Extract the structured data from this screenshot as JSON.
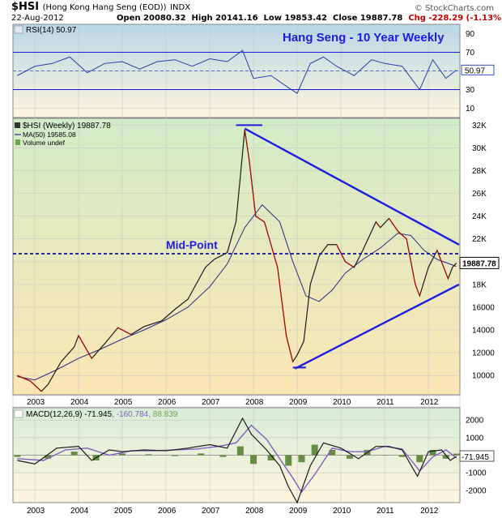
{
  "header": {
    "symbol": "$HSI",
    "name": "(Hong Kong Hang Seng (EOD))",
    "exchange": "INDX",
    "date": "22-Aug-2012",
    "open": "Open 20080.32",
    "high": "High 20141.16",
    "low": "Low 19853.42",
    "close": "Close 19887.78",
    "chg": "Chg -228.29 (-1.13%)",
    "copyright": "© StockCharts.com"
  },
  "colors": {
    "panel_bg": "#fdf5dc",
    "rsi_gradient_top": "#b8d8e8",
    "price_gradient_top": "#d2ecc8",
    "price_gradient_bottom": "#fde6b4",
    "annotation_blue": "#1c1ce0",
    "price_line": "#1a1a1a",
    "up_bar": "#1a1a1a",
    "down_bar": "#c00000",
    "ma_line": "#2a2a80",
    "macd_line": "#1a1a1a",
    "signal_line": "#8060c0",
    "histogram": "#507a2a"
  },
  "chart_data": [
    {
      "type": "line",
      "panel": "RSI",
      "legend": "RSI(14) 50.97",
      "title": "Hang Seng - 10 Year Weekly",
      "current_label": "50.97",
      "ylim": [
        0,
        100
      ],
      "y_ticks": [
        "10",
        "30",
        "50",
        "70",
        "90"
      ],
      "reference_lines": [
        70,
        30
      ],
      "x": [
        2002.6,
        2003.0,
        2003.4,
        2003.8,
        2004.2,
        2004.6,
        2005.0,
        2005.4,
        2005.8,
        2006.2,
        2006.6,
        2007.0,
        2007.4,
        2007.75,
        2008.0,
        2008.4,
        2008.8,
        2009.0,
        2009.3,
        2009.6,
        2009.9,
        2010.3,
        2010.7,
        2011.0,
        2011.4,
        2011.8,
        2012.1,
        2012.4,
        2012.64
      ],
      "values": [
        45,
        55,
        58,
        65,
        48,
        58,
        60,
        52,
        60,
        62,
        55,
        63,
        60,
        72,
        42,
        45,
        32,
        26,
        58,
        65,
        55,
        45,
        62,
        58,
        55,
        30,
        62,
        42,
        51
      ]
    },
    {
      "type": "line",
      "panel": "Price",
      "legend": [
        "$HSI (Weekly) 19887.78",
        "MA(50) 19585.08",
        "Volume undef"
      ],
      "current_label": "19887.78",
      "ylim": [
        8300,
        32600
      ],
      "y_ticks": [
        "10000",
        "12000",
        "14000",
        "16000",
        "18K",
        "20K",
        "22K",
        "24K",
        "26K",
        "28K",
        "30K",
        "32K"
      ],
      "x_ticks": [
        "2003",
        "2004",
        "2005",
        "2006",
        "2007",
        "2008",
        "2009",
        "2010",
        "2011",
        "2012"
      ],
      "series": [
        {
          "name": "$HSI (Weekly)",
          "x": [
            2002.6,
            2002.9,
            2003.15,
            2003.3,
            2003.6,
            2003.9,
            2004.0,
            2004.3,
            2004.6,
            2004.9,
            2005.2,
            2005.5,
            2005.9,
            2006.2,
            2006.5,
            2006.9,
            2007.1,
            2007.4,
            2007.6,
            2007.7,
            2007.8,
            2007.9,
            2008.05,
            2008.25,
            2008.4,
            2008.55,
            2008.75,
            2008.9,
            2009.0,
            2009.15,
            2009.3,
            2009.5,
            2009.7,
            2009.9,
            2010.1,
            2010.3,
            2010.5,
            2010.8,
            2010.9,
            2011.1,
            2011.3,
            2011.5,
            2011.7,
            2011.8,
            2012.0,
            2012.2,
            2012.35,
            2012.45,
            2012.55,
            2012.64
          ],
          "values": [
            10000,
            9500,
            8600,
            9200,
            11200,
            12500,
            13500,
            11500,
            12800,
            14200,
            13600,
            14300,
            14800,
            15800,
            16700,
            19500,
            20200,
            20800,
            23500,
            27500,
            31600,
            29000,
            24000,
            23500,
            21500,
            19500,
            13500,
            11200,
            11800,
            13000,
            18000,
            20500,
            21500,
            21500,
            20000,
            19500,
            21000,
            23500,
            23000,
            23800,
            22700,
            22000,
            18000,
            17000,
            19500,
            21000,
            19500,
            18500,
            19500,
            19888
          ]
        },
        {
          "name": "MA(50)",
          "x": [
            2002.6,
            2003.0,
            2003.5,
            2004.0,
            2004.5,
            2005.0,
            2005.5,
            2006.0,
            2006.5,
            2007.0,
            2007.4,
            2007.8,
            2008.2,
            2008.6,
            2008.9,
            2009.2,
            2009.5,
            2009.8,
            2010.1,
            2010.5,
            2010.9,
            2011.3,
            2011.6,
            2011.9,
            2012.2,
            2012.64
          ],
          "values": [
            9900,
            9600,
            10500,
            11500,
            12300,
            13200,
            14000,
            14900,
            16000,
            17800,
            19800,
            23000,
            25000,
            23500,
            20000,
            17000,
            16500,
            17500,
            19000,
            20200,
            21200,
            22500,
            22300,
            21000,
            20200,
            19585
          ]
        }
      ],
      "annotations": {
        "midpoint_label": "Mid-Point",
        "midpoint_value": 20700,
        "triangle_upper": [
          [
            2007.8,
            31700
          ],
          [
            2012.7,
            21500
          ]
        ],
        "triangle_lower": [
          [
            2008.95,
            10600
          ],
          [
            2012.7,
            18000
          ]
        ],
        "top_cap": [
          [
            2007.6,
            32000
          ],
          [
            2008.2,
            32000
          ]
        ],
        "bottom_cap": [
          [
            2008.9,
            10700
          ],
          [
            2009.2,
            10700
          ]
        ]
      }
    },
    {
      "type": "line",
      "panel": "MACD",
      "legend": "MACD(12,26,9) -71.945, -160.784, 88.839",
      "current_label": "-71.945",
      "ylim": [
        -2700,
        2700
      ],
      "y_ticks": [
        "-2000",
        "-1000",
        "0",
        "1000",
        "2000"
      ],
      "x_ticks": [
        "2003",
        "2004",
        "2005",
        "2006",
        "2007",
        "2008",
        "2009",
        "2010",
        "2011",
        "2012"
      ],
      "series": [
        {
          "name": "MACD",
          "x": [
            2002.6,
            2003.0,
            2003.5,
            2004.0,
            2004.3,
            2004.7,
            2005.0,
            2005.5,
            2006.0,
            2006.5,
            2007.0,
            2007.4,
            2007.75,
            2007.95,
            2008.3,
            2008.6,
            2008.8,
            2009.0,
            2009.3,
            2009.6,
            2010.0,
            2010.4,
            2010.8,
            2011.1,
            2011.4,
            2011.75,
            2012.0,
            2012.3,
            2012.5,
            2012.64
          ],
          "values": [
            -300,
            -500,
            400,
            500,
            -300,
            300,
            200,
            300,
            250,
            400,
            600,
            400,
            2100,
            1200,
            300,
            -600,
            -1800,
            -2700,
            -600,
            700,
            400,
            -200,
            500,
            500,
            300,
            -1200,
            200,
            300,
            -300,
            -72
          ]
        },
        {
          "name": "Signal",
          "x": [
            2002.6,
            2003.2,
            2003.7,
            2004.2,
            2004.7,
            2005.2,
            2005.7,
            2006.2,
            2006.7,
            2007.2,
            2007.6,
            2007.95,
            2008.3,
            2008.6,
            2008.9,
            2009.1,
            2009.4,
            2009.8,
            2010.2,
            2010.6,
            2011.0,
            2011.4,
            2011.8,
            2012.1,
            2012.4,
            2012.64
          ],
          "values": [
            -200,
            -300,
            300,
            400,
            0,
            250,
            250,
            300,
            350,
            500,
            700,
            1700,
            900,
            -200,
            -1300,
            -2100,
            -1100,
            400,
            200,
            200,
            500,
            350,
            -900,
            -100,
            300,
            -161
          ]
        },
        {
          "name": "Histogram",
          "x": [
            2002.6,
            2003.3,
            2003.9,
            2004.4,
            2005.0,
            2005.6,
            2006.2,
            2006.8,
            2007.3,
            2007.7,
            2008.0,
            2008.4,
            2008.8,
            2009.1,
            2009.4,
            2009.8,
            2010.2,
            2010.6,
            2011.0,
            2011.4,
            2011.8,
            2012.1,
            2012.4,
            2012.64
          ],
          "values": [
            -100,
            -200,
            200,
            -300,
            100,
            50,
            -50,
            100,
            -100,
            500,
            -500,
            -300,
            -600,
            -400,
            600,
            300,
            -200,
            300,
            0,
            -100,
            -400,
            300,
            -200,
            89
          ]
        }
      ]
    }
  ]
}
